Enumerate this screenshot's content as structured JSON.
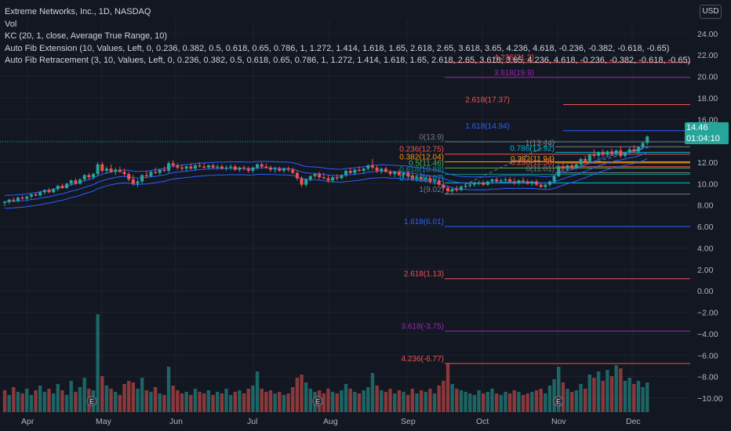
{
  "legend": {
    "title": "Extreme Networks, Inc., 1D, NASDAQ",
    "vol": "Vol",
    "kc": "KC (20, 1, close, Average True Range, 10)",
    "fib_ext": "Auto Fib Extension (10, Values, Left, 0, 0.236, 0.382, 0.5, 0.618, 0.65, 0.786, 1, 1.272, 1.414, 1.618, 1.65, 2.618, 2.65, 3.618, 3.65, 4.236, 4.618, -0.236, -0.382, -0.618, -0.65)",
    "fib_ret": "Auto Fib Retracement (3, 10, Values, Left, 0, 0.236, 0.382, 0.5, 0.618, 0.65, 0.786, 1, 1.272, 1.414, 1.618, 1.65, 2.618, 2.65, 3.618, 3.65, 4.236, 4.618, -0.236, -0.382, -0.618, -0.65)"
  },
  "currency": "USD",
  "price_tag": {
    "price": "14.46",
    "countdown": "01:04:10"
  },
  "chart_data": {
    "type": "candlestick",
    "title": "Extreme Networks, Inc., 1D, NASDAQ",
    "yaxis": {
      "ticks": [
        24,
        22,
        20,
        18,
        16,
        14,
        12,
        10,
        8,
        6,
        4,
        2,
        0,
        -2,
        -4,
        -6,
        -8,
        -10
      ],
      "labels": [
        "24.00",
        "22.00",
        "20.00",
        "18.00",
        "16.00",
        "14.00",
        "12.00",
        "10.00",
        "8.00",
        "6.00",
        "4.00",
        "2.00",
        "0.00",
        "−2.00",
        "−4.00",
        "−6.00",
        "−8.00",
        "−10.00"
      ],
      "range": [
        -10.8,
        25.3
      ]
    },
    "xaxis": {
      "labels": [
        "Apr",
        "May",
        "Jun",
        "Jul",
        "Aug",
        "Sep",
        "Oct",
        "Nov",
        "Dec"
      ]
    },
    "last_price": 14.46,
    "price_line": 13.9,
    "fib_extension": [
      {
        "label": "4.236(21.3)",
        "value": 21.3,
        "color": "#f05350"
      },
      {
        "label": "3.618(19.9)",
        "value": 19.9,
        "color": "#9c27b0"
      },
      {
        "label": "2.618(17.37)",
        "value": 17.37,
        "color": "#f05350"
      },
      {
        "label": "1.618(14.94)",
        "value": 14.94,
        "color": "#2962ff"
      },
      {
        "label": "0(13.9)",
        "value": 13.9,
        "color": "#787b86"
      },
      {
        "label": "0.236(12.75)",
        "value": 12.75,
        "color": "#f05350"
      },
      {
        "label": "0.382(12.04)",
        "value": 12.04,
        "color": "#ff9800"
      },
      {
        "label": "0.5(11.46)",
        "value": 11.46,
        "color": "#4caf50"
      },
      {
        "label": "0.618(10.88)",
        "value": 10.88,
        "color": "#089981"
      },
      {
        "label": "0.786(10.07)",
        "value": 10.07,
        "color": "#00bcd4"
      },
      {
        "label": "1(9.02)",
        "value": 9.02,
        "color": "#787b86"
      },
      {
        "label": "1.618(6.01)",
        "value": 6.01,
        "color": "#2962ff"
      },
      {
        "label": "2.618(1.13)",
        "value": 1.13,
        "color": "#f05350"
      },
      {
        "label": "3.618(-3.75)",
        "value": -3.75,
        "color": "#9c27b0"
      },
      {
        "label": "4.236(-6.77)",
        "value": -6.77,
        "color": "#f05350"
      }
    ],
    "fib_retracement": [
      {
        "label": "1(13.44)",
        "value": 13.44,
        "color": "#787b86"
      },
      {
        "label": "0.786(12.92)",
        "value": 12.92,
        "color": "#00bcd4"
      },
      {
        "label": "0.382(11.94)",
        "value": 11.94,
        "color": "#ff9800"
      },
      {
        "label": "0.236(11.58)",
        "value": 11.58,
        "color": "#f05350"
      },
      {
        "label": "0(11.01)",
        "value": 11.01,
        "color": "#787b86"
      }
    ],
    "kc_start": [
      8.4,
      8.9,
      9.5
    ],
    "kc_end": [
      12.7,
      13.5,
      14.3
    ],
    "candles": [
      [
        8.2,
        8.4,
        7.9,
        8.3
      ],
      [
        8.3,
        8.6,
        8.1,
        8.5
      ],
      [
        8.5,
        8.7,
        8.3,
        8.4
      ],
      [
        8.4,
        8.8,
        8.3,
        8.7
      ],
      [
        8.7,
        8.9,
        8.5,
        8.6
      ],
      [
        8.6,
        8.9,
        8.4,
        8.8
      ],
      [
        8.8,
        9.1,
        8.6,
        9.0
      ],
      [
        9.0,
        9.2,
        8.8,
        8.9
      ],
      [
        8.9,
        9.3,
        8.8,
        9.2
      ],
      [
        9.2,
        9.5,
        9.0,
        9.4
      ],
      [
        9.4,
        9.6,
        9.1,
        9.2
      ],
      [
        9.2,
        9.6,
        9.1,
        9.5
      ],
      [
        9.5,
        9.9,
        9.3,
        9.8
      ],
      [
        9.8,
        10.0,
        9.5,
        9.6
      ],
      [
        9.6,
        10.1,
        9.5,
        10.0
      ],
      [
        10.0,
        10.4,
        9.8,
        10.3
      ],
      [
        10.3,
        10.5,
        9.9,
        10.0
      ],
      [
        10.0,
        10.5,
        9.9,
        10.4
      ],
      [
        10.4,
        10.9,
        10.2,
        10.8
      ],
      [
        10.8,
        11.0,
        10.4,
        10.6
      ],
      [
        10.6,
        11.0,
        10.4,
        10.9
      ],
      [
        10.9,
        12.0,
        10.7,
        11.8
      ],
      [
        11.8,
        12.0,
        11.0,
        11.2
      ],
      [
        11.2,
        11.6,
        10.9,
        11.4
      ],
      [
        11.4,
        11.8,
        11.0,
        11.1
      ],
      [
        11.1,
        11.5,
        10.8,
        11.3
      ],
      [
        11.3,
        11.6,
        11.0,
        11.1
      ],
      [
        11.1,
        11.4,
        10.7,
        10.9
      ],
      [
        10.9,
        11.1,
        10.2,
        10.4
      ],
      [
        10.4,
        10.8,
        9.8,
        10.0
      ],
      [
        10.0,
        10.4,
        9.7,
        10.2
      ],
      [
        10.2,
        10.9,
        10.0,
        10.8
      ],
      [
        10.8,
        11.2,
        10.5,
        10.7
      ],
      [
        10.7,
        11.2,
        10.6,
        11.1
      ],
      [
        11.1,
        11.5,
        10.9,
        11.0
      ],
      [
        11.0,
        11.4,
        10.8,
        11.3
      ],
      [
        11.3,
        11.6,
        11.1,
        11.2
      ],
      [
        11.2,
        12.1,
        11.0,
        11.9
      ],
      [
        11.9,
        12.2,
        11.5,
        11.7
      ],
      [
        11.7,
        11.9,
        11.3,
        11.5
      ],
      [
        11.5,
        11.8,
        11.2,
        11.4
      ],
      [
        11.4,
        11.7,
        11.1,
        11.6
      ],
      [
        11.6,
        11.9,
        11.3,
        11.4
      ],
      [
        11.4,
        11.8,
        11.2,
        11.7
      ],
      [
        11.7,
        12.0,
        11.5,
        11.6
      ],
      [
        11.6,
        11.9,
        11.4,
        11.5
      ],
      [
        11.5,
        11.8,
        11.3,
        11.7
      ],
      [
        11.7,
        11.9,
        11.4,
        11.5
      ],
      [
        11.5,
        11.8,
        11.3,
        11.6
      ],
      [
        11.6,
        11.8,
        11.3,
        11.4
      ],
      [
        11.4,
        11.7,
        11.2,
        11.5
      ],
      [
        11.5,
        11.8,
        11.3,
        11.6
      ],
      [
        11.6,
        11.8,
        11.2,
        11.3
      ],
      [
        11.3,
        11.6,
        11.1,
        11.5
      ],
      [
        11.5,
        11.7,
        11.2,
        11.4
      ],
      [
        11.4,
        11.6,
        11.0,
        11.2
      ],
      [
        11.2,
        11.6,
        11.0,
        11.5
      ],
      [
        11.5,
        11.9,
        11.3,
        11.8
      ],
      [
        11.8,
        12.0,
        11.4,
        11.6
      ],
      [
        11.6,
        11.9,
        11.4,
        11.5
      ],
      [
        11.5,
        11.7,
        11.1,
        11.3
      ],
      [
        11.3,
        11.6,
        11.0,
        11.4
      ],
      [
        11.4,
        11.6,
        11.1,
        11.2
      ],
      [
        11.2,
        11.5,
        11.0,
        11.4
      ],
      [
        11.4,
        11.6,
        11.1,
        11.3
      ],
      [
        11.3,
        11.5,
        10.9,
        11.0
      ],
      [
        11.0,
        11.2,
        10.3,
        10.5
      ],
      [
        10.5,
        10.7,
        9.7,
        9.9
      ],
      [
        9.9,
        10.5,
        9.7,
        10.4
      ],
      [
        10.4,
        10.8,
        10.2,
        10.7
      ],
      [
        10.7,
        11.0,
        10.5,
        10.9
      ],
      [
        10.9,
        11.1,
        10.4,
        10.6
      ],
      [
        10.6,
        11.0,
        10.4,
        10.5
      ],
      [
        10.5,
        10.8,
        10.1,
        10.3
      ],
      [
        10.3,
        10.7,
        10.1,
        10.6
      ],
      [
        10.6,
        10.9,
        10.3,
        10.5
      ],
      [
        10.5,
        10.9,
        10.4,
        10.8
      ],
      [
        10.8,
        11.3,
        10.6,
        11.2
      ],
      [
        11.2,
        11.5,
        10.9,
        11.0
      ],
      [
        11.0,
        11.4,
        10.8,
        11.3
      ],
      [
        11.3,
        11.6,
        11.1,
        11.2
      ],
      [
        11.2,
        11.5,
        10.9,
        11.4
      ],
      [
        11.4,
        11.8,
        11.2,
        11.7
      ],
      [
        11.7,
        12.3,
        11.3,
        11.5
      ],
      [
        11.5,
        11.7,
        11.0,
        11.2
      ],
      [
        11.2,
        11.5,
        10.9,
        11.4
      ],
      [
        11.4,
        11.6,
        11.0,
        11.1
      ],
      [
        11.1,
        11.3,
        10.7,
        10.9
      ],
      [
        10.9,
        11.2,
        10.6,
        11.1
      ],
      [
        11.1,
        11.3,
        10.7,
        10.8
      ],
      [
        10.8,
        11.1,
        10.5,
        11.0
      ],
      [
        11.0,
        11.2,
        10.6,
        10.7
      ],
      [
        10.7,
        10.9,
        10.3,
        10.5
      ],
      [
        10.5,
        10.8,
        10.2,
        10.6
      ],
      [
        10.6,
        10.9,
        10.3,
        10.4
      ],
      [
        10.4,
        10.7,
        10.1,
        10.5
      ],
      [
        10.5,
        10.7,
        10.0,
        10.2
      ],
      [
        10.2,
        10.5,
        9.9,
        10.3
      ],
      [
        10.3,
        10.5,
        9.8,
        9.9
      ],
      [
        9.9,
        10.2,
        9.4,
        9.6
      ],
      [
        9.6,
        9.8,
        9.1,
        9.3
      ],
      [
        9.3,
        9.6,
        9.0,
        9.5
      ],
      [
        9.5,
        9.8,
        9.2,
        9.4
      ],
      [
        9.4,
        9.8,
        9.3,
        9.7
      ],
      [
        9.7,
        10.0,
        9.5,
        9.8
      ],
      [
        9.8,
        10.1,
        9.6,
        9.9
      ],
      [
        9.9,
        10.2,
        9.7,
        10.0
      ],
      [
        10.0,
        10.3,
        9.8,
        10.1
      ],
      [
        10.1,
        10.3,
        9.8,
        9.9
      ],
      [
        9.9,
        10.3,
        9.8,
        10.2
      ],
      [
        10.2,
        10.5,
        10.0,
        10.4
      ],
      [
        10.4,
        10.6,
        10.1,
        10.2
      ],
      [
        10.2,
        10.5,
        10.0,
        10.3
      ],
      [
        10.3,
        10.6,
        10.1,
        10.4
      ],
      [
        10.4,
        10.6,
        10.1,
        10.2
      ],
      [
        10.2,
        10.5,
        9.9,
        10.1
      ],
      [
        10.1,
        10.4,
        9.9,
        10.3
      ],
      [
        10.3,
        10.6,
        10.1,
        10.2
      ],
      [
        10.2,
        10.4,
        9.9,
        10.0
      ],
      [
        10.0,
        10.3,
        9.8,
        10.2
      ],
      [
        10.2,
        10.4,
        9.8,
        9.9
      ],
      [
        9.9,
        10.1,
        9.6,
        9.7
      ],
      [
        9.7,
        10.0,
        9.5,
        9.9
      ],
      [
        9.9,
        10.3,
        9.7,
        10.2
      ],
      [
        10.2,
        10.8,
        10.0,
        10.7
      ],
      [
        10.7,
        11.8,
        10.6,
        11.6
      ],
      [
        11.6,
        11.9,
        11.2,
        11.4
      ],
      [
        11.4,
        11.8,
        11.2,
        11.7
      ],
      [
        11.7,
        12.0,
        11.3,
        11.5
      ],
      [
        11.5,
        11.9,
        11.3,
        11.8
      ],
      [
        11.8,
        12.4,
        11.6,
        12.3
      ],
      [
        12.3,
        12.6,
        11.9,
        12.1
      ],
      [
        12.1,
        12.8,
        12.0,
        12.7
      ],
      [
        12.7,
        13.2,
        12.4,
        12.6
      ],
      [
        12.6,
        13.0,
        12.3,
        12.9
      ],
      [
        12.9,
        13.2,
        12.5,
        12.7
      ],
      [
        12.7,
        13.1,
        12.5,
        13.0
      ],
      [
        13.0,
        13.3,
        12.6,
        12.8
      ],
      [
        12.8,
        13.2,
        12.6,
        13.1
      ],
      [
        13.1,
        13.5,
        12.4,
        12.6
      ],
      [
        12.6,
        13.0,
        12.4,
        12.9
      ],
      [
        12.9,
        13.4,
        12.7,
        13.2
      ],
      [
        13.2,
        13.6,
        12.9,
        13.0
      ],
      [
        13.0,
        13.5,
        12.8,
        13.4
      ],
      [
        13.4,
        13.9,
        13.2,
        13.8
      ],
      [
        13.8,
        14.5,
        13.6,
        14.4
      ]
    ],
    "volume": [
      [
        28,
        0
      ],
      [
        22,
        1
      ],
      [
        32,
        0
      ],
      [
        26,
        1
      ],
      [
        24,
        0
      ],
      [
        30,
        1
      ],
      [
        22,
        1
      ],
      [
        28,
        0
      ],
      [
        34,
        1
      ],
      [
        26,
        1
      ],
      [
        30,
        0
      ],
      [
        24,
        1
      ],
      [
        36,
        1
      ],
      [
        28,
        0
      ],
      [
        22,
        1
      ],
      [
        40,
        1
      ],
      [
        26,
        0
      ],
      [
        32,
        1
      ],
      [
        44,
        1
      ],
      [
        30,
        0
      ],
      [
        28,
        1
      ],
      [
        125,
        1
      ],
      [
        46,
        0
      ],
      [
        34,
        1
      ],
      [
        30,
        0
      ],
      [
        26,
        1
      ],
      [
        22,
        0
      ],
      [
        36,
        0
      ],
      [
        40,
        0
      ],
      [
        38,
        0
      ],
      [
        30,
        1
      ],
      [
        44,
        1
      ],
      [
        28,
        0
      ],
      [
        26,
        1
      ],
      [
        32,
        0
      ],
      [
        24,
        1
      ],
      [
        22,
        0
      ],
      [
        58,
        1
      ],
      [
        34,
        0
      ],
      [
        28,
        0
      ],
      [
        24,
        0
      ],
      [
        26,
        1
      ],
      [
        22,
        0
      ],
      [
        30,
        1
      ],
      [
        26,
        0
      ],
      [
        24,
        0
      ],
      [
        28,
        1
      ],
      [
        22,
        0
      ],
      [
        26,
        1
      ],
      [
        24,
        0
      ],
      [
        30,
        1
      ],
      [
        22,
        1
      ],
      [
        26,
        0
      ],
      [
        28,
        1
      ],
      [
        24,
        0
      ],
      [
        30,
        0
      ],
      [
        34,
        1
      ],
      [
        52,
        1
      ],
      [
        30,
        0
      ],
      [
        26,
        0
      ],
      [
        28,
        0
      ],
      [
        24,
        1
      ],
      [
        26,
        0
      ],
      [
        22,
        1
      ],
      [
        24,
        0
      ],
      [
        32,
        0
      ],
      [
        44,
        0
      ],
      [
        48,
        0
      ],
      [
        38,
        1
      ],
      [
        30,
        1
      ],
      [
        26,
        1
      ],
      [
        28,
        0
      ],
      [
        24,
        0
      ],
      [
        30,
        0
      ],
      [
        26,
        1
      ],
      [
        24,
        0
      ],
      [
        28,
        1
      ],
      [
        36,
        1
      ],
      [
        30,
        0
      ],
      [
        26,
        1
      ],
      [
        24,
        0
      ],
      [
        28,
        1
      ],
      [
        32,
        1
      ],
      [
        50,
        1
      ],
      [
        34,
        0
      ],
      [
        28,
        1
      ],
      [
        26,
        0
      ],
      [
        30,
        0
      ],
      [
        24,
        1
      ],
      [
        28,
        0
      ],
      [
        26,
        1
      ],
      [
        22,
        0
      ],
      [
        30,
        0
      ],
      [
        24,
        1
      ],
      [
        28,
        0
      ],
      [
        26,
        1
      ],
      [
        30,
        0
      ],
      [
        24,
        1
      ],
      [
        34,
        0
      ],
      [
        40,
        0
      ],
      [
        62,
        0
      ],
      [
        36,
        1
      ],
      [
        30,
        0
      ],
      [
        28,
        1
      ],
      [
        26,
        1
      ],
      [
        24,
        1
      ],
      [
        22,
        1
      ],
      [
        28,
        1
      ],
      [
        24,
        0
      ],
      [
        26,
        1
      ],
      [
        30,
        1
      ],
      [
        24,
        0
      ],
      [
        22,
        1
      ],
      [
        26,
        1
      ],
      [
        24,
        0
      ],
      [
        28,
        0
      ],
      [
        26,
        1
      ],
      [
        22,
        0
      ],
      [
        24,
        0
      ],
      [
        26,
        1
      ],
      [
        28,
        0
      ],
      [
        30,
        0
      ],
      [
        24,
        1
      ],
      [
        34,
        1
      ],
      [
        42,
        1
      ],
      [
        58,
        1
      ],
      [
        38,
        0
      ],
      [
        30,
        1
      ],
      [
        26,
        0
      ],
      [
        28,
        1
      ],
      [
        36,
        1
      ],
      [
        30,
        0
      ],
      [
        48,
        1
      ],
      [
        44,
        0
      ],
      [
        52,
        1
      ],
      [
        40,
        0
      ],
      [
        54,
        1
      ],
      [
        46,
        0
      ],
      [
        60,
        1
      ],
      [
        56,
        0
      ],
      [
        40,
        1
      ],
      [
        44,
        1
      ],
      [
        36,
        0
      ],
      [
        40,
        1
      ],
      [
        32,
        1
      ],
      [
        38,
        1
      ]
    ]
  }
}
